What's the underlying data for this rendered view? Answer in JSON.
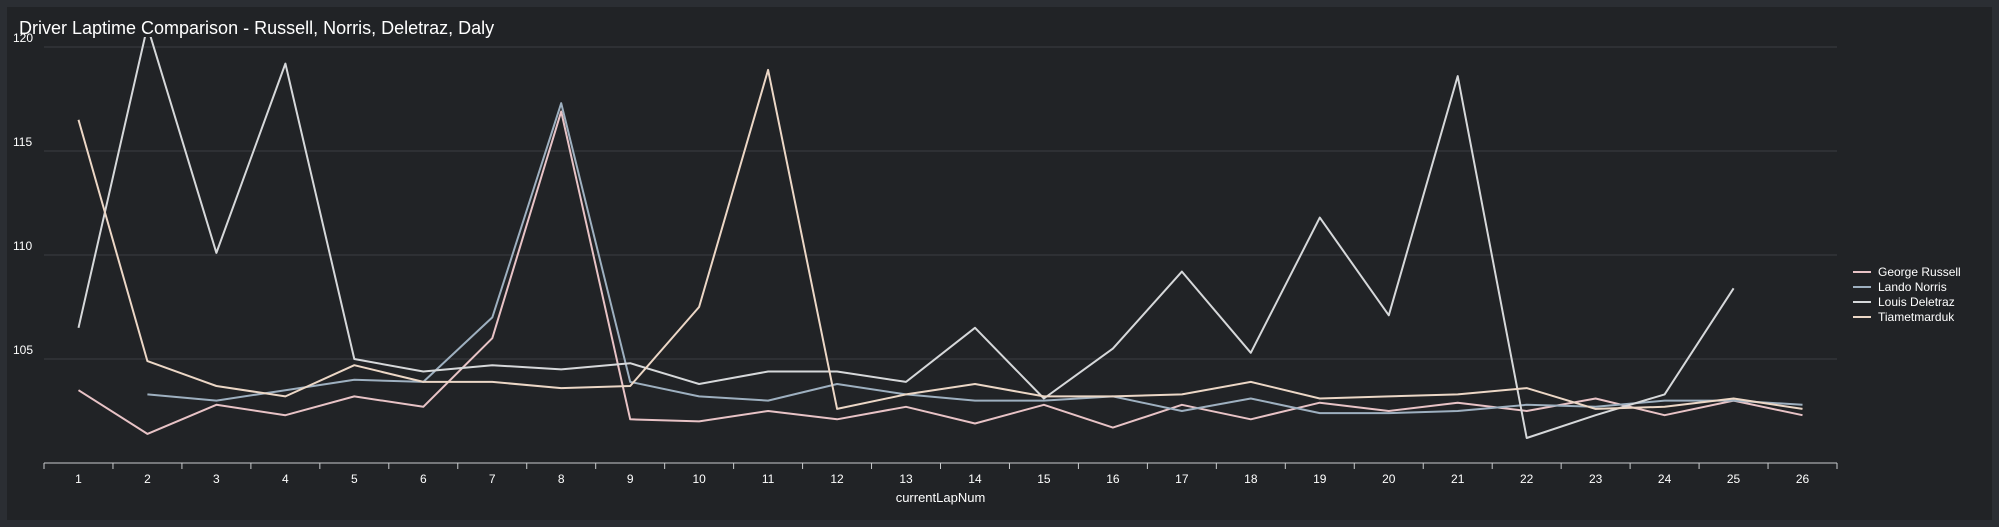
{
  "panel": {
    "title": "Driver Laptime Comparison - Russell, Norris, Deletraz, Daly"
  },
  "chart_data": {
    "type": "line",
    "title": "Driver Laptime Comparison - Russell, Norris, Deletraz, Daly",
    "xlabel": "currentLapNum",
    "ylabel": "",
    "x": [
      1,
      2,
      3,
      4,
      5,
      6,
      7,
      8,
      9,
      10,
      11,
      12,
      13,
      14,
      15,
      16,
      17,
      18,
      19,
      20,
      21,
      22,
      23,
      24,
      25,
      26
    ],
    "ylim": [
      100,
      120
    ],
    "yticks": [
      105,
      110,
      115,
      120
    ],
    "grid": true,
    "legend_position": "right",
    "series": [
      {
        "name": "George Russell",
        "color": "#e8c3c6",
        "values": [
          103.5,
          101.4,
          102.8,
          102.3,
          103.2,
          102.7,
          106.0,
          116.9,
          102.1,
          102.0,
          102.5,
          102.1,
          102.7,
          101.9,
          102.8,
          101.7,
          102.8,
          102.1,
          102.9,
          102.5,
          102.9,
          102.5,
          103.1,
          102.3,
          103.0,
          102.3
        ]
      },
      {
        "name": "Lando Norris",
        "color": "#9eb0c0",
        "values": [
          null,
          103.3,
          103.0,
          103.5,
          104.0,
          103.9,
          107.0,
          117.3,
          103.9,
          103.2,
          103.0,
          103.8,
          103.3,
          103.0,
          103.0,
          103.2,
          102.5,
          103.1,
          102.4,
          102.4,
          102.5,
          102.8,
          102.7,
          103.0,
          103.0,
          102.8
        ]
      },
      {
        "name": "Louis Deletraz",
        "color": "#d6d8da",
        "values": [
          106.5,
          121.0,
          110.1,
          119.2,
          105.0,
          104.4,
          104.7,
          104.5,
          104.8,
          103.8,
          104.4,
          104.4,
          103.9,
          106.5,
          103.1,
          105.5,
          109.2,
          105.3,
          111.8,
          107.1,
          118.6,
          101.2,
          102.3,
          103.3,
          108.4,
          null
        ]
      },
      {
        "name": "Tiametmarduk",
        "color": "#ecd7c6",
        "values": [
          116.5,
          104.9,
          103.7,
          103.2,
          104.7,
          103.9,
          103.9,
          103.6,
          103.7,
          107.5,
          118.9,
          102.6,
          103.3,
          103.8,
          103.2,
          103.2,
          103.3,
          103.9,
          103.1,
          103.2,
          103.3,
          103.6,
          102.6,
          102.7,
          103.1,
          102.6
        ]
      }
    ]
  }
}
